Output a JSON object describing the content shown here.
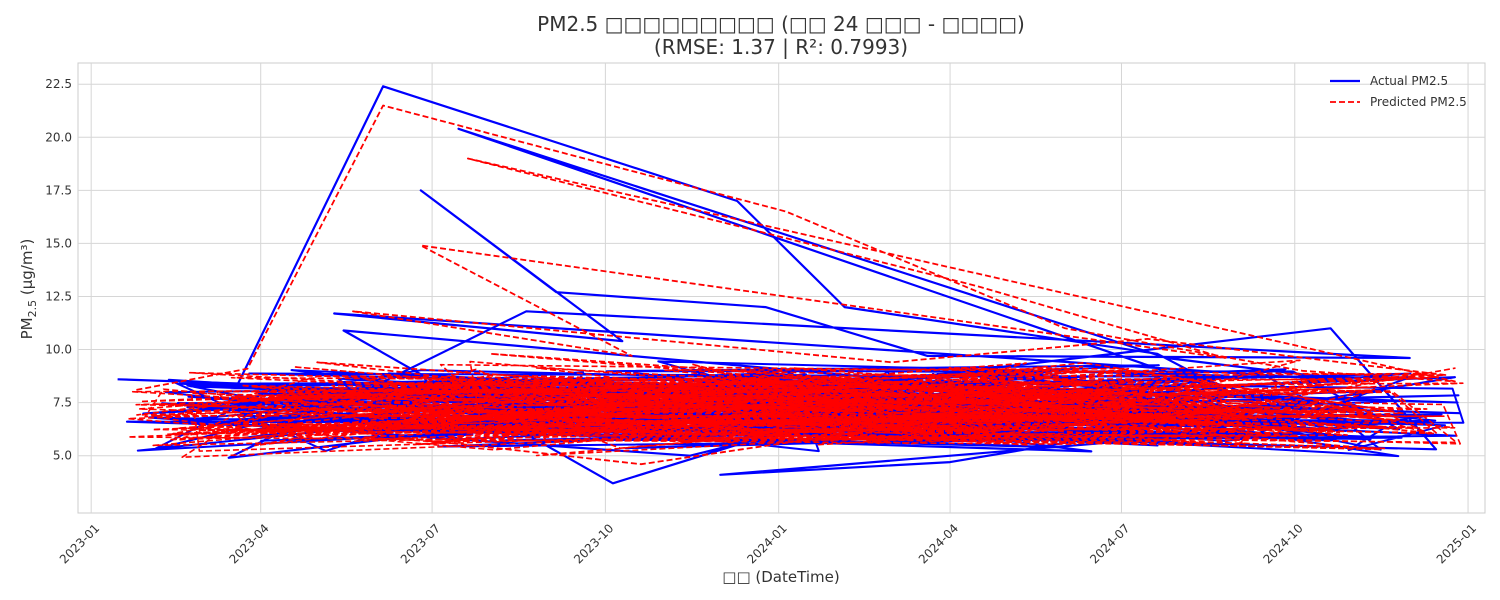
{
  "chart_data": {
    "type": "line",
    "title_line1": "PM2.5 □□□□□□□□□ (□□ 24 □□□ - □□□□)",
    "title_line2": "(RMSE: 1.37 | R²: 0.7993)",
    "xlabel": "□□ (DateTime)",
    "ylabel_main": "PM",
    "ylabel_sub": "2.5",
    "ylabel_unit": " (μg/m³)",
    "xlim": [
      "2022-12-25",
      "2025-01-10"
    ],
    "ylim": [
      2.3,
      23.5
    ],
    "x_ticks": [
      "2023-01",
      "2023-04",
      "2023-07",
      "2023-10",
      "2024-01",
      "2024-04",
      "2024-07",
      "2024-10",
      "2025-01"
    ],
    "y_ticks": [
      "5.0",
      "7.5",
      "10.0",
      "12.5",
      "15.0",
      "17.5",
      "20.0",
      "22.5"
    ],
    "grid": true,
    "legend_position": "top-right",
    "colors": {
      "actual": "#0000ff",
      "predicted": "#ff0000"
    },
    "series": [
      {
        "name": "Actual PM2.5",
        "style": "solid",
        "x": [
          "2023-01-15",
          "2023-03-20",
          "2023-06-05",
          "2023-12-10",
          "2024-02-05",
          "2024-07-20",
          "2024-09-01",
          "2023-07-15",
          "2024-07-25",
          "2024-11-05",
          "2023-05-10",
          "2023-10-10",
          "2023-06-25",
          "2023-09-05",
          "2023-12-25",
          "2024-03-20",
          "2024-12-01",
          "2023-08-20",
          "2023-03-15",
          "2024-10-20",
          "2024-12-15",
          "2023-02-01",
          "2023-11-15",
          "2024-05-10",
          "2023-04-20",
          "2024-08-15",
          "2023-12-01",
          "2024-04-01",
          "2024-12-25",
          "2023-07-05",
          "2024-02-20",
          "2023-10-05",
          "2023-05-15",
          "2024-11-25",
          "2023-01-20",
          "2024-06-15",
          "2023-09-20",
          "2024-12-28"
        ],
        "y": [
          8.6,
          8.4,
          22.4,
          17.0,
          12.0,
          9.8,
          7.8,
          20.4,
          9.6,
          8.5,
          11.7,
          10.4,
          17.5,
          12.7,
          12.0,
          9.7,
          9.6,
          11.8,
          4.9,
          11.0,
          5.3,
          6.8,
          5.0,
          8.9,
          7.3,
          6.0,
          4.1,
          4.7,
          8.7,
          7.0,
          7.5,
          3.7,
          10.9,
          6.5,
          6.6,
          5.2,
          8.2,
          7.0
        ]
      },
      {
        "name": "Predicted PM2.5",
        "style": "dashed",
        "x": [
          "2023-01-25",
          "2023-03-25",
          "2023-06-05",
          "2024-01-05",
          "2024-06-01",
          "2024-10-05",
          "2024-12-25",
          "2023-07-20",
          "2024-04-15",
          "2024-08-25",
          "2023-06-25",
          "2023-10-15",
          "2023-05-20",
          "2024-03-01",
          "2024-07-15",
          "2024-12-20",
          "2023-02-10",
          "2024-01-20",
          "2024-11-15",
          "2023-04-10",
          "2023-10-20",
          "2024-06-20",
          "2023-08-01",
          "2024-09-01",
          "2023-03-01",
          "2024-12-10",
          "2023-09-10",
          "2024-05-01",
          "2023-05-01",
          "2024-10-25"
        ],
        "y": [
          8.1,
          9.1,
          21.5,
          16.5,
          11.0,
          9.0,
          8.5,
          19.0,
          13.0,
          9.6,
          14.9,
          9.7,
          11.8,
          9.4,
          10.5,
          8.8,
          6.0,
          7.7,
          5.3,
          6.5,
          4.6,
          7.8,
          9.8,
          6.9,
          6.2,
          7.2,
          8.4,
          5.6,
          9.4,
          6.1
        ]
      }
    ]
  }
}
